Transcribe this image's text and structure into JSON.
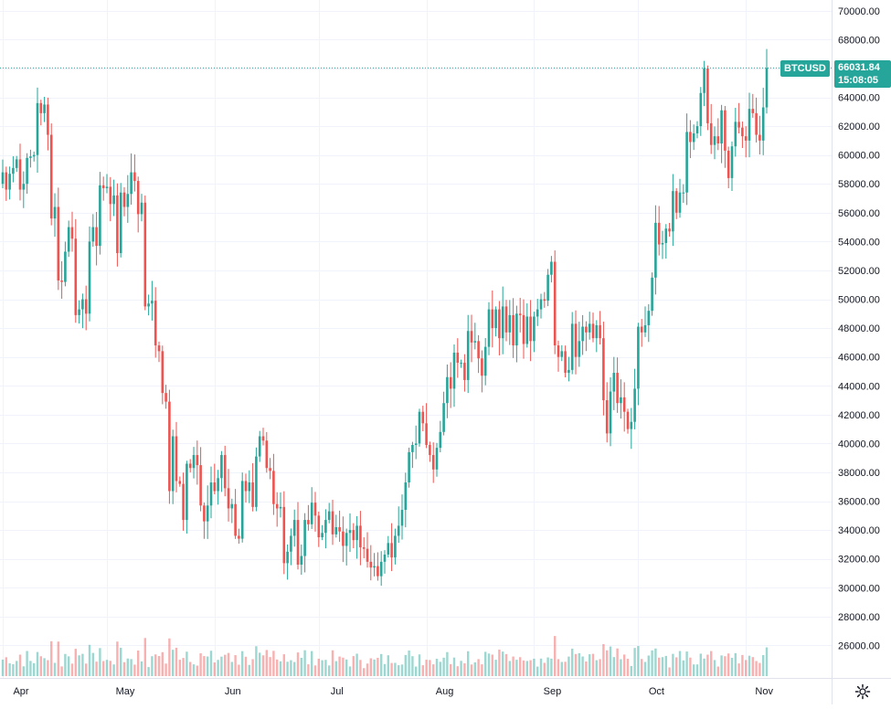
{
  "symbol": "BTCUSD",
  "last_price": "66031.84",
  "countdown": "15:08:05",
  "colors": {
    "up": "#26a69a",
    "down": "#ef5350",
    "grid": "#f0f3fa",
    "text": "#131722",
    "last_line": "#26a69a"
  },
  "settings_icon": "gear-icon",
  "chart_data": {
    "type": "candlestick",
    "title": "",
    "xlabel": "",
    "ylabel": "",
    "ylim": [
      24000,
      71000
    ],
    "y_ticks": [
      "26000.00",
      "28000.00",
      "30000.00",
      "32000.00",
      "34000.00",
      "36000.00",
      "38000.00",
      "40000.00",
      "42000.00",
      "44000.00",
      "46000.00",
      "48000.00",
      "50000.00",
      "52000.00",
      "54000.00",
      "56000.00",
      "58000.00",
      "60000.00",
      "62000.00",
      "64000.00",
      "66000.00",
      "68000.00",
      "70000.00"
    ],
    "x_ticks": [
      "Apr",
      "May",
      "Jun",
      "Jul",
      "Aug",
      "Sep",
      "Oct",
      "Nov"
    ],
    "grid": true,
    "series": [
      {
        "month": "Apr",
        "close": [
          58800,
          57600,
          58700,
          59100,
          59700,
          57600,
          58000,
          59800,
          59900,
          60000,
          63600,
          62900,
          63500,
          61400,
          55600,
          56400,
          51300,
          51200,
          53300,
          55000,
          54200,
          48900,
          49300,
          50000,
          49000,
          54000,
          55000,
          53700,
          57900,
          57700
        ]
      },
      {
        "month": "May",
        "close": [
          57800,
          56600,
          57200,
          53200,
          57400,
          56400,
          57300,
          58800,
          58200,
          55900,
          56700,
          49500,
          49700,
          49900,
          46800,
          46400,
          43500,
          42900,
          36700,
          40500,
          37400,
          37200,
          34700,
          38600,
          38300,
          39200,
          38500,
          35700,
          34600,
          35700,
          37300
        ]
      },
      {
        "month": "Jun",
        "close": [
          36700,
          37600,
          39200,
          36900,
          35500,
          35800,
          33600,
          33400,
          37400,
          36700,
          37300,
          35600,
          39100,
          40500,
          40200,
          38300,
          38100,
          35800,
          35500,
          35600,
          31700,
          32500,
          33600,
          34700,
          31600,
          32200,
          34700,
          34400,
          35900,
          35000
        ]
      },
      {
        "month": "Jul",
        "close": [
          33500,
          33800,
          34700,
          35300,
          33700,
          34200,
          33900,
          32900,
          33800,
          34000,
          33300,
          34300,
          32800,
          32700,
          31800,
          31400,
          31500,
          30800,
          31800,
          32300,
          33100,
          32100,
          33600,
          34300,
          35400,
          37300,
          39400,
          39900,
          40000,
          42200,
          41400
        ]
      },
      {
        "month": "Aug",
        "close": [
          39900,
          39200,
          38200,
          39700,
          40800,
          42800,
          44600,
          43800,
          46300,
          45600,
          45600,
          44400,
          47800,
          47000,
          47100,
          45900,
          44700,
          46700,
          49300,
          48000,
          49300,
          47300,
          49500,
          47700,
          48900,
          46800,
          49000,
          48900,
          46900,
          48800,
          47100
        ]
      },
      {
        "month": "Sep",
        "close": [
          48800,
          49300,
          50000,
          49900,
          51700,
          52600,
          46800,
          46000,
          46400,
          44900,
          45100,
          48300,
          46000,
          47100,
          48100,
          47700,
          48300,
          47300,
          48200,
          47300,
          43000,
          40700,
          43600,
          44900,
          42800,
          43200,
          42200,
          41000,
          41500,
          43800
        ]
      },
      {
        "month": "Oct",
        "close": [
          48100,
          47700,
          48200,
          49200,
          51500,
          55300,
          53800,
          53900,
          54900,
          54700,
          57500,
          56000,
          57400,
          57400,
          61600,
          60900,
          61500,
          62000,
          64300,
          66000,
          62200,
          60700,
          61300,
          60800,
          63100,
          60300,
          58400,
          60600,
          62300,
          61900,
          61300
        ]
      },
      {
        "month": "Nov",
        "close": [
          61000,
          63200,
          62900,
          61400,
          61000,
          63300,
          66031.84
        ]
      }
    ]
  }
}
